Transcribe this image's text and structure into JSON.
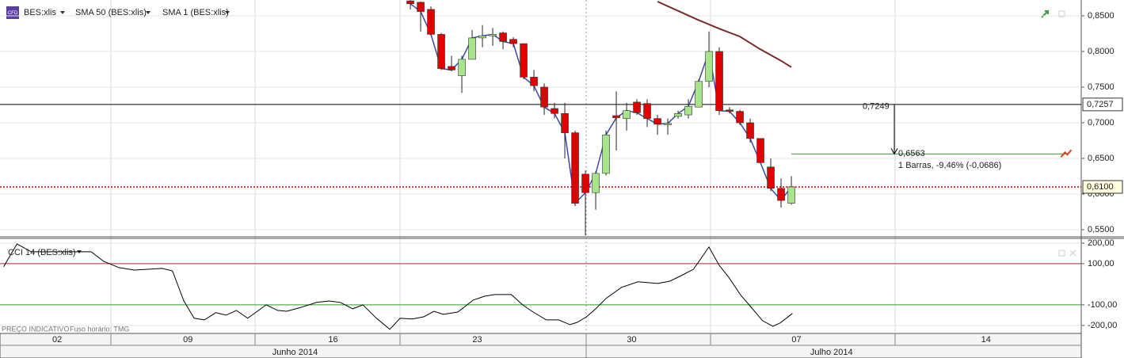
{
  "chart_data": [
    {
      "type": "candlestick",
      "symbol": "BES:xlis",
      "icon": "CFD",
      "up_color": "#a8e48c",
      "down_color": "#e00000",
      "x": [
        0,
        1,
        2,
        3,
        4,
        5,
        6,
        7,
        8,
        9,
        10,
        11,
        12,
        13,
        14,
        15,
        16,
        17,
        18,
        19,
        20,
        21,
        22,
        23,
        24,
        25,
        26,
        27,
        28,
        29,
        30,
        31,
        32,
        33,
        34,
        35,
        36,
        37
      ],
      "open": [
        0.871,
        0.869,
        0.859,
        0.824,
        0.779,
        0.766,
        0.789,
        0.819,
        0.822,
        0.826,
        0.817,
        0.811,
        0.764,
        0.75,
        0.72,
        0.713,
        0.686,
        0.628,
        0.602,
        0.629,
        0.71,
        0.706,
        0.729,
        0.727,
        0.706,
        0.697,
        0.709,
        0.711,
        0.722,
        0.758,
        0.8,
        0.718,
        0.716,
        0.7,
        0.678,
        0.638,
        0.608,
        0.587
      ],
      "high": [
        0.872,
        0.87,
        0.863,
        0.826,
        0.794,
        0.794,
        0.83,
        0.837,
        0.833,
        0.828,
        0.82,
        0.811,
        0.774,
        0.755,
        0.728,
        0.728,
        0.689,
        0.633,
        0.632,
        0.689,
        0.744,
        0.728,
        0.733,
        0.733,
        0.711,
        0.706,
        0.717,
        0.733,
        0.761,
        0.828,
        0.806,
        0.722,
        0.718,
        0.706,
        0.678,
        0.65,
        0.622,
        0.625
      ],
      "low": [
        0.859,
        0.828,
        0.822,
        0.774,
        0.772,
        0.742,
        0.789,
        0.806,
        0.808,
        0.803,
        0.806,
        0.761,
        0.744,
        0.711,
        0.706,
        0.65,
        0.583,
        0.542,
        0.578,
        0.626,
        0.661,
        0.689,
        0.711,
        0.694,
        0.683,
        0.683,
        0.706,
        0.706,
        0.722,
        0.75,
        0.711,
        0.713,
        0.697,
        0.672,
        0.643,
        0.604,
        0.581,
        0.585
      ],
      "close": [
        0.867,
        0.856,
        0.824,
        0.776,
        0.774,
        0.789,
        0.819,
        0.822,
        0.824,
        0.814,
        0.811,
        0.764,
        0.752,
        0.722,
        0.713,
        0.686,
        0.587,
        0.602,
        0.629,
        0.683,
        0.707,
        0.717,
        0.714,
        0.706,
        0.698,
        0.699,
        0.713,
        0.723,
        0.758,
        0.8,
        0.717,
        0.716,
        0.7,
        0.678,
        0.644,
        0.608,
        0.591,
        0.61
      ],
      "series": [
        {
          "name": "SMA 50 (BES:xlis)",
          "color": "#7a2a2a",
          "x": [
            24,
            26,
            28,
            30,
            32,
            34,
            36,
            37
          ],
          "values": [
            0.87,
            0.857,
            0.844,
            0.832,
            0.821,
            0.803,
            0.787,
            0.778
          ]
        },
        {
          "name": "SMA 1 (BES:xlis)",
          "color": "#3a4aa8",
          "values": [
            0.867,
            0.856,
            0.824,
            0.776,
            0.774,
            0.789,
            0.819,
            0.822,
            0.824,
            0.814,
            0.811,
            0.764,
            0.752,
            0.722,
            0.713,
            0.686,
            0.587,
            0.602,
            0.629,
            0.683,
            0.707,
            0.717,
            0.714,
            0.706,
            0.698,
            0.699,
            0.713,
            0.723,
            0.758,
            0.8,
            0.717,
            0.716,
            0.7,
            0.678,
            0.644,
            0.608,
            0.591,
            0.61
          ]
        }
      ],
      "xlim": [
        -39.85,
        65.15
      ],
      "ylim": [
        0.5411,
        0.8722
      ],
      "yticks": [
        {
          "value": 0.55,
          "label": "0,5500"
        },
        {
          "value": 0.6,
          "label": "0,6000"
        },
        {
          "value": 0.65,
          "label": "0,6500"
        },
        {
          "value": 0.7,
          "label": "0,7000"
        },
        {
          "value": 0.75,
          "label": "0,7500"
        },
        {
          "value": 0.8,
          "label": "0,8000"
        },
        {
          "value": 0.85,
          "label": "0,8500"
        }
      ],
      "hlines": [
        {
          "value": 0.7257,
          "label": "0,7257",
          "color": "#000000",
          "style": "solid"
        },
        {
          "value": 0.61,
          "label": "0,6100",
          "color": "#d00000",
          "style": "dotted"
        }
      ],
      "measure": {
        "from": 0.7249,
        "from_label": "0,7249",
        "to": 0.6563,
        "to_label": "0,6563",
        "text": "1 Barras, -9,46% (-0,0686)",
        "color": "#3a9a3a"
      }
    },
    {
      "type": "line",
      "title": "CCI 14 (BES:xlis)",
      "color": "#000000",
      "x": [
        -39.5,
        -38.2,
        -36.8,
        -35.2,
        -32.2,
        -31.0,
        -29.8,
        -28.3,
        -26.8,
        -24.1,
        -23.1,
        -22.0,
        -21.0,
        -20.0,
        -18.9,
        -17.9,
        -16.9,
        -15.8,
        -14.0,
        -12.9,
        -12.0,
        -10.6,
        -9.1,
        -7.9,
        -6.8,
        -5.6,
        -4.6,
        -3.3,
        -2.0,
        -1.0,
        0.2,
        1.3,
        2.3,
        3.2,
        4.6,
        6.1,
        7.2,
        8.2,
        9.8,
        10.9,
        11.8,
        13.2,
        14.4,
        15.5,
        16.2,
        17.1,
        18.0,
        19.0,
        20.5,
        22.1,
        24.0,
        25.2,
        26.3,
        27.5,
        29.0,
        30.0,
        30.9,
        32.1,
        33.1,
        34.2,
        35.2,
        35.9,
        37.1
      ],
      "values": [
        85,
        196,
        158,
        158,
        158,
        158,
        112,
        81,
        69,
        77,
        65,
        -81,
        -165,
        -173,
        -138,
        -150,
        -127,
        -165,
        -100,
        -127,
        -131,
        -112,
        -88,
        -81,
        -88,
        -119,
        -100,
        -165,
        -219,
        -165,
        -169,
        -158,
        -131,
        -146,
        -135,
        -77,
        -58,
        -50,
        -50,
        -100,
        -131,
        -173,
        -173,
        -196,
        -185,
        -158,
        -119,
        -69,
        -15,
        12,
        4,
        15,
        42,
        73,
        181,
        92,
        35,
        -54,
        -112,
        -177,
        -204,
        -188,
        -142
      ],
      "xlim": [
        -39.85,
        65.15
      ],
      "ylim": [
        -235,
        219
      ],
      "yticks": [
        {
          "value": 200,
          "label": "200,00"
        },
        {
          "value": 100,
          "label": "100,00"
        },
        {
          "value": -100,
          "label": "-100,00"
        },
        {
          "value": -200,
          "label": "-200,00"
        }
      ],
      "levels": [
        {
          "value": 100,
          "color": "#b03030"
        },
        {
          "value": -100,
          "color": "#30a030"
        }
      ],
      "footer": [
        "PREÇO INDICATIVO",
        "Fuso horário: TMG"
      ],
      "xticks": [
        {
          "value": -34.3,
          "label": "02"
        },
        {
          "value": -21.6,
          "label": "09"
        },
        {
          "value": -7.5,
          "label": "16"
        },
        {
          "value": 6.5,
          "label": "23"
        },
        {
          "value": 21.5,
          "label": "30"
        },
        {
          "value": 37.5,
          "label": "07"
        },
        {
          "value": 55.9,
          "label": "14"
        }
      ],
      "month_ticks": [
        {
          "value": -11.2,
          "label": "Junho 2014"
        },
        {
          "value": 40.9,
          "label": "Julho 2014"
        }
      ]
    }
  ]
}
